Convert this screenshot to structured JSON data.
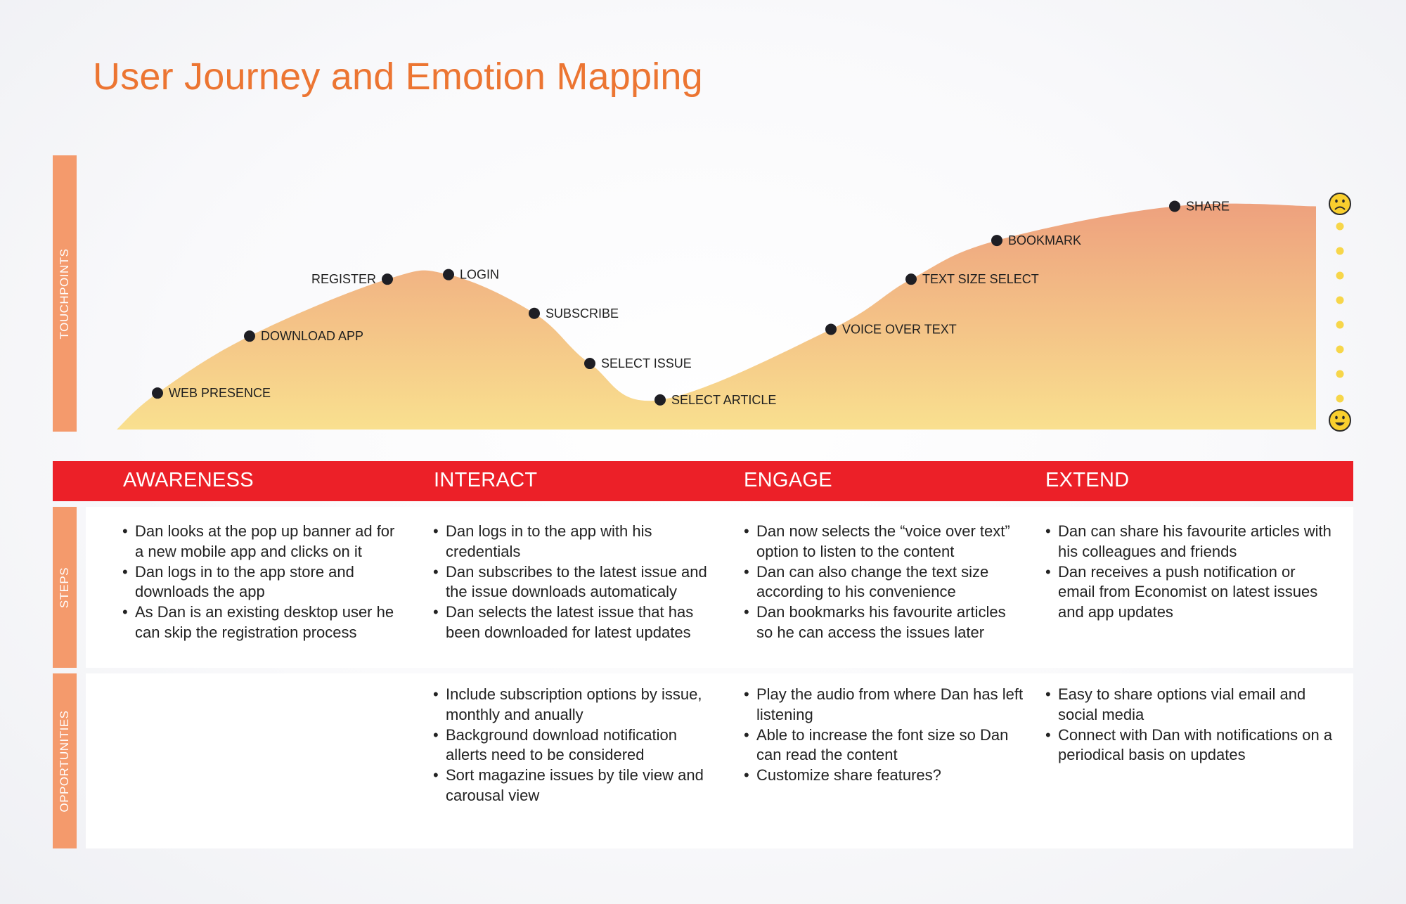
{
  "title": "User Journey and Emotion Mapping",
  "row_labels": {
    "touchpoints": "TOUCHPOINTS",
    "steps": "STEPS",
    "opportunities": "OPPORTUNITIES"
  },
  "chart_data": {
    "type": "area",
    "title": "",
    "touchpoints": [
      {
        "label": "WEB PRESENCE",
        "x": 1,
        "level": 0.16
      },
      {
        "label": "DOWNLOAD APP",
        "x": 2,
        "level": 0.41
      },
      {
        "label": "REGISTER",
        "x": 3,
        "level": 0.66
      },
      {
        "label": "LOGIN",
        "x": 4,
        "level": 0.68
      },
      {
        "label": "SUBSCRIBE",
        "x": 5,
        "level": 0.51
      },
      {
        "label": "SELECT ISSUE",
        "x": 6,
        "level": 0.29
      },
      {
        "label": "SELECT ARTICLE",
        "x": 7,
        "level": 0.13
      },
      {
        "label": "VOICE OVER TEXT",
        "x": 8,
        "level": 0.44
      },
      {
        "label": "TEXT SIZE SELECT",
        "x": 9,
        "level": 0.66
      },
      {
        "label": "BOOKMARK",
        "x": 10,
        "level": 0.83
      },
      {
        "label": "SHARE",
        "x": 11,
        "level": 0.98
      }
    ],
    "scale": {
      "top_icon": "frown-emoji-icon",
      "bottom_icon": "smile-emoji-icon"
    },
    "colors": {
      "fill_top": "#eea17e",
      "fill_bottom": "#f9e08f",
      "point": "#1e1e24",
      "scale_dot": "#f7d64a"
    }
  },
  "phases": [
    {
      "name": "AWARENESS",
      "steps": [
        "Dan looks at the pop up banner ad for a new mobile app and clicks on it",
        "Dan logs in to the app store and downloads the app",
        "As Dan is an existing desktop user he can skip the registration process"
      ],
      "opportunities": []
    },
    {
      "name": "INTERACT",
      "steps": [
        "Dan logs in to the app with his credentials",
        "Dan subscribes to the latest issue and the issue downloads automaticaly",
        "Dan selects the latest issue that has been downloaded for latest updates"
      ],
      "opportunities": [
        "Include subscription options by issue, monthly and anually",
        "Background download notification allerts need to be considered",
        "Sort magazine issues by tile view and carousal view"
      ]
    },
    {
      "name": "ENGAGE",
      "steps": [
        "Dan now selects the “voice over text” option to listen to the content",
        "Dan can also change the text size according to his convenience",
        "Dan bookmarks his favourite articles so he can access the issues later"
      ],
      "opportunities": [
        "Play the audio from where Dan has left listening",
        "Able to increase the font size so Dan can read the content",
        "Customize share features?"
      ]
    },
    {
      "name": "EXTEND",
      "steps": [
        "Dan can share his favourite articles with his colleagues and friends",
        "Dan receives a push notification or email from Economist on latest issues and app updates"
      ],
      "opportunities": [
        "Easy to share options vial email and social media",
        "Connect with Dan with notifications on a periodical basis on updates"
      ]
    }
  ],
  "colors": {
    "title": "#ec7532",
    "phase_bar": "#ec2028",
    "side_label": "#f49a6c"
  }
}
